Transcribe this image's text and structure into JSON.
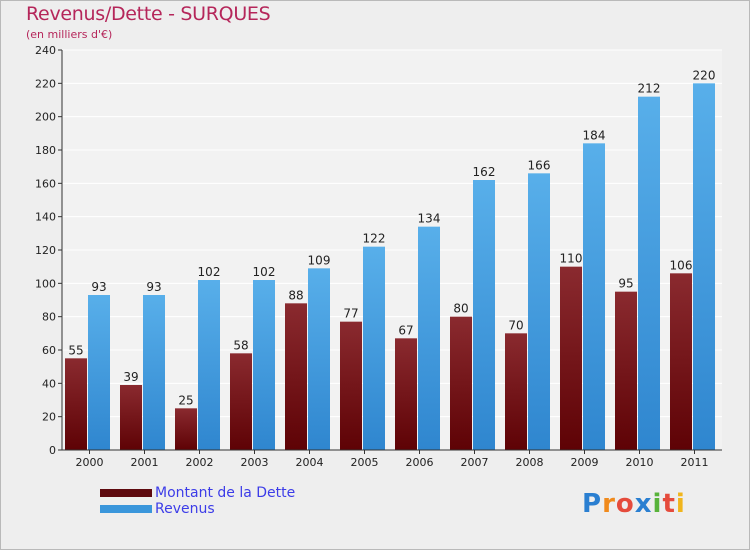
{
  "header": {
    "title": "Revenus/Dette - SURQUES",
    "subtitle": "(en milliers d'€)"
  },
  "chart_data": {
    "type": "bar",
    "title": "Revenus/Dette - SURQUES",
    "ylabel": "(en milliers d'€)",
    "xlabel": "",
    "categories": [
      "2000",
      "2001",
      "2002",
      "2003",
      "2004",
      "2005",
      "2006",
      "2007",
      "2008",
      "2009",
      "2010",
      "2011"
    ],
    "series": [
      {
        "name": "Montant de la Dette",
        "color": "#7a0f14",
        "values": [
          55,
          39,
          25,
          58,
          88,
          77,
          67,
          80,
          70,
          110,
          95,
          106
        ]
      },
      {
        "name": "Revenus",
        "color": "#4ea6e6",
        "values": [
          93,
          93,
          102,
          102,
          109,
          122,
          134,
          162,
          166,
          184,
          212,
          220
        ]
      }
    ],
    "ylim": [
      0,
      240
    ],
    "yticks": [
      0,
      20,
      40,
      60,
      80,
      100,
      120,
      140,
      160,
      180,
      200,
      220,
      240
    ],
    "grid": true,
    "legend_position": "bottom-left"
  },
  "legend": {
    "items": [
      {
        "label": "Montant de la Dette",
        "color": "#5e0a0f"
      },
      {
        "label": "Revenus",
        "color": "#3a96db"
      }
    ]
  },
  "logo": {
    "letters": [
      "P",
      "r",
      "o",
      "x",
      "i",
      "t",
      "i"
    ],
    "colors": [
      "#2a7fd1",
      "#f08a1c",
      "#e54b3c",
      "#2a7fd1",
      "#58b33a",
      "#e54b3c",
      "#f0b51c"
    ]
  }
}
